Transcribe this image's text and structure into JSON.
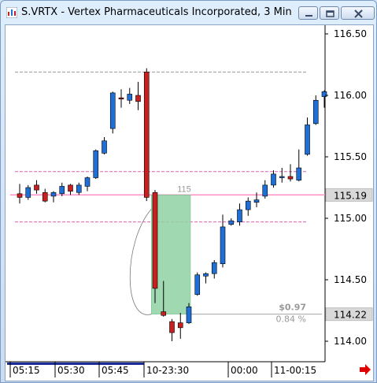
{
  "window": {
    "title": "S.VRTX - Vertex Pharmaceuticals Incorporated, 3 Min",
    "controls": [
      "minimize",
      "restore",
      "close"
    ]
  },
  "chart_data": {
    "type": "candlestick",
    "symbol": "S.VRTX",
    "interval": "3 Min",
    "y_ticks": [
      116.5,
      116.0,
      115.5,
      115.0,
      114.5,
      114.0
    ],
    "y_tick_labels": [
      "116.50",
      "116.00",
      "115.50",
      "115.00",
      "114.50",
      "114.00"
    ],
    "x_tick_labels": [
      "05:15",
      "05:30",
      "05:45",
      "10-23:30",
      "00:00",
      "11-00:15"
    ],
    "ylim": [
      113.85,
      116.62
    ],
    "last_price": "115.19",
    "marked_price": "114.22",
    "horizontal_lines": [
      {
        "value": 116.19,
        "color": "#999999",
        "style": "dashed"
      },
      {
        "value": 115.38,
        "color": "#e060b8",
        "style": "dashed"
      },
      {
        "value": 115.19,
        "color": "#ff88c0",
        "style": "solid"
      },
      {
        "value": 114.97,
        "color": "#e060b8",
        "style": "dashed"
      }
    ],
    "measure_box": {
      "label_top": "115",
      "change": "$0.97",
      "change_pct": "0.84 %",
      "from_price": 115.19,
      "to_price": 114.22
    },
    "candles": [
      {
        "o": 115.2,
        "h": 115.28,
        "l": 115.12,
        "c": 115.17
      },
      {
        "o": 115.17,
        "h": 115.27,
        "l": 115.15,
        "c": 115.25
      },
      {
        "o": 115.27,
        "h": 115.31,
        "l": 115.2,
        "c": 115.23
      },
      {
        "o": 115.21,
        "h": 115.24,
        "l": 115.13,
        "c": 115.14
      },
      {
        "o": 115.18,
        "h": 115.22,
        "l": 115.13,
        "c": 115.21
      },
      {
        "o": 115.2,
        "h": 115.29,
        "l": 115.18,
        "c": 115.26
      },
      {
        "o": 115.27,
        "h": 115.28,
        "l": 115.19,
        "c": 115.22
      },
      {
        "o": 115.21,
        "h": 115.29,
        "l": 115.19,
        "c": 115.27
      },
      {
        "o": 115.26,
        "h": 115.34,
        "l": 115.22,
        "c": 115.33
      },
      {
        "o": 115.33,
        "h": 115.56,
        "l": 115.32,
        "c": 115.55
      },
      {
        "o": 115.53,
        "h": 115.66,
        "l": 115.52,
        "c": 115.63
      },
      {
        "o": 115.73,
        "h": 116.03,
        "l": 115.69,
        "c": 116.02
      },
      {
        "o": 115.98,
        "h": 116.05,
        "l": 115.9,
        "c": 115.97
      },
      {
        "o": 115.96,
        "h": 116.06,
        "l": 115.93,
        "c": 116.01
      },
      {
        "o": 116.0,
        "h": 116.11,
        "l": 115.88,
        "c": 115.95
      },
      {
        "o": 116.19,
        "h": 116.22,
        "l": 115.14,
        "c": 115.17
      },
      {
        "o": 115.21,
        "h": 115.23,
        "l": 114.31,
        "c": 114.43
      },
      {
        "o": 114.24,
        "h": 114.49,
        "l": 114.2,
        "c": 114.21
      },
      {
        "o": 114.16,
        "h": 114.18,
        "l": 114.0,
        "c": 114.07
      },
      {
        "o": 114.15,
        "h": 114.23,
        "l": 114.02,
        "c": 114.11
      },
      {
        "o": 114.15,
        "h": 114.31,
        "l": 114.14,
        "c": 114.28
      },
      {
        "o": 114.38,
        "h": 114.56,
        "l": 114.37,
        "c": 114.54
      },
      {
        "o": 114.53,
        "h": 114.56,
        "l": 114.47,
        "c": 114.55
      },
      {
        "o": 114.55,
        "h": 114.66,
        "l": 114.51,
        "c": 114.64
      },
      {
        "o": 114.63,
        "h": 115.03,
        "l": 114.6,
        "c": 114.93
      },
      {
        "o": 114.95,
        "h": 115.0,
        "l": 114.94,
        "c": 114.98
      },
      {
        "o": 114.97,
        "h": 115.12,
        "l": 114.94,
        "c": 115.07
      },
      {
        "o": 115.07,
        "h": 115.17,
        "l": 115.02,
        "c": 115.14
      },
      {
        "o": 115.13,
        "h": 115.21,
        "l": 115.09,
        "c": 115.15
      },
      {
        "o": 115.18,
        "h": 115.31,
        "l": 115.16,
        "c": 115.27
      },
      {
        "o": 115.27,
        "h": 115.39,
        "l": 115.25,
        "c": 115.36
      },
      {
        "o": 115.33,
        "h": 115.41,
        "l": 115.29,
        "c": 115.34
      },
      {
        "o": 115.34,
        "h": 115.44,
        "l": 115.3,
        "c": 115.32
      },
      {
        "o": 115.31,
        "h": 115.56,
        "l": 115.3,
        "c": 115.41
      },
      {
        "o": 115.52,
        "h": 115.82,
        "l": 115.51,
        "c": 115.76
      },
      {
        "o": 115.77,
        "h": 116.0,
        "l": 115.76,
        "c": 115.96
      },
      {
        "o": 115.99,
        "h": 116.04,
        "l": 115.9,
        "c": 116.03
      }
    ],
    "colors": {
      "up": "#1f6fd6",
      "down": "#c82020",
      "wick": "#000000",
      "box": "#8fd1a5"
    }
  }
}
